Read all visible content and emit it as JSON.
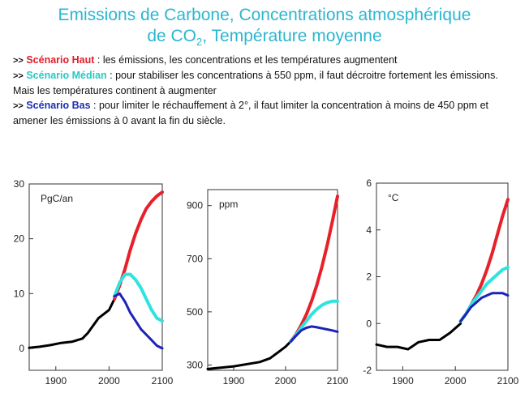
{
  "title": {
    "line1": "Emissions de Carbone, Concentrations atmosphérique",
    "line2_prefix": "de CO",
    "line2_sub": "2",
    "line2_suffix": ", Température moyenne"
  },
  "bullets": {
    "arrow": ">>",
    "haut_label": "Scénario Haut",
    "haut_text": " : les émissions, les concentrations et les températures augmentent",
    "median_label": "Scénario Médian",
    "median_text": " : pour stabiliser les concentrations à 550 ppm, il faut décroitre fortement les émissions. Mais les températures continent à augmenter",
    "bas_label": "Scénario Bas",
    "bas_text": " : pour limiter le réchauffement à 2°, il faut limiter la  concentration à moins de 450 ppm et amener les émissions à 0 avant la fin du siècle."
  },
  "colors": {
    "haut": "#e8202a",
    "median": "#2fe3df",
    "bas": "#1d22b8",
    "historical": "#000000",
    "title": "#2cb6cf"
  },
  "chart_data": [
    {
      "type": "line",
      "unit_label": "PgC/an",
      "xlim": [
        1850,
        2100
      ],
      "ylim": [
        -4,
        30
      ],
      "xticks": [
        1900,
        2000,
        2100
      ],
      "yticks": [
        0,
        10,
        20,
        30
      ],
      "series": [
        {
          "name": "",
          "key": "historical",
          "x": [
            1850,
            1870,
            1890,
            1910,
            1930,
            1950,
            1960,
            1980,
            2000,
            2010
          ],
          "values": [
            0.1,
            0.3,
            0.6,
            1.0,
            1.2,
            1.8,
            2.8,
            5.5,
            7.0,
            9.0
          ]
        },
        {
          "name": "Scénario Haut",
          "key": "haut",
          "x": [
            2010,
            2020,
            2030,
            2040,
            2050,
            2060,
            2070,
            2080,
            2090,
            2100
          ],
          "values": [
            9.0,
            11.5,
            14.5,
            18.0,
            21.0,
            23.5,
            25.5,
            26.8,
            27.8,
            28.5
          ]
        },
        {
          "name": "Scénario Médian",
          "key": "median",
          "x": [
            2010,
            2020,
            2030,
            2040,
            2050,
            2060,
            2070,
            2080,
            2090,
            2100
          ],
          "values": [
            9.5,
            12.0,
            13.5,
            13.5,
            12.5,
            11.0,
            9.0,
            7.0,
            5.5,
            5.0
          ]
        },
        {
          "name": "Scénario Bas",
          "key": "bas",
          "x": [
            2010,
            2020,
            2030,
            2040,
            2050,
            2060,
            2070,
            2080,
            2090,
            2100
          ],
          "values": [
            9.5,
            10.0,
            8.5,
            6.5,
            5.0,
            3.5,
            2.5,
            1.5,
            0.5,
            0.0
          ]
        }
      ]
    },
    {
      "type": "line",
      "unit_label": "ppm",
      "xlim": [
        1850,
        2100
      ],
      "ylim": [
        280,
        960
      ],
      "xticks": [
        1900,
        2000,
        2100
      ],
      "yticks": [
        300,
        500,
        700,
        900
      ],
      "series": [
        {
          "name": "",
          "key": "historical",
          "x": [
            1850,
            1900,
            1950,
            1970,
            1990,
            2000,
            2010
          ],
          "values": [
            285,
            295,
            311,
            325,
            354,
            369,
            389
          ]
        },
        {
          "name": "Scénario Haut",
          "key": "haut",
          "x": [
            2010,
            2020,
            2030,
            2040,
            2050,
            2060,
            2070,
            2080,
            2090,
            2100
          ],
          "values": [
            389,
            415,
            450,
            490,
            540,
            600,
            670,
            750,
            840,
            935
          ]
        },
        {
          "name": "Scénario Médian",
          "key": "median",
          "x": [
            2010,
            2020,
            2030,
            2040,
            2050,
            2060,
            2070,
            2080,
            2090,
            2100
          ],
          "values": [
            389,
            412,
            440,
            465,
            490,
            510,
            525,
            535,
            540,
            540
          ]
        },
        {
          "name": "Scénario Bas",
          "key": "bas",
          "x": [
            2010,
            2020,
            2030,
            2040,
            2050,
            2060,
            2070,
            2080,
            2090,
            2100
          ],
          "values": [
            389,
            410,
            430,
            440,
            445,
            442,
            438,
            434,
            430,
            425
          ]
        }
      ]
    },
    {
      "type": "line",
      "unit_label": "°C",
      "xlim": [
        1850,
        2100
      ],
      "ylim": [
        -2,
        6
      ],
      "xticks": [
        1900,
        2000,
        2100
      ],
      "yticks": [
        -2,
        0,
        2,
        4,
        6
      ],
      "series": [
        {
          "name": "",
          "key": "historical",
          "x": [
            1850,
            1870,
            1890,
            1910,
            1930,
            1950,
            1970,
            1990,
            2000,
            2010
          ],
          "values": [
            -0.9,
            -1.0,
            -1.0,
            -1.1,
            -0.8,
            -0.7,
            -0.7,
            -0.4,
            -0.2,
            0.0
          ]
        },
        {
          "name": "Scénario Haut",
          "key": "haut",
          "x": [
            2010,
            2020,
            2030,
            2040,
            2050,
            2060,
            2070,
            2080,
            2090,
            2100
          ],
          "values": [
            0.1,
            0.4,
            0.8,
            1.2,
            1.7,
            2.3,
            3.0,
            3.8,
            4.6,
            5.3
          ]
        },
        {
          "name": "Scénario Médian",
          "key": "median",
          "x": [
            2010,
            2020,
            2030,
            2040,
            2050,
            2060,
            2070,
            2080,
            2090,
            2100
          ],
          "values": [
            0.1,
            0.4,
            0.8,
            1.1,
            1.4,
            1.7,
            1.9,
            2.1,
            2.3,
            2.4
          ]
        },
        {
          "name": "Scénario Bas",
          "key": "bas",
          "x": [
            2010,
            2020,
            2030,
            2040,
            2050,
            2060,
            2070,
            2080,
            2090,
            2100
          ],
          "values": [
            0.1,
            0.4,
            0.7,
            0.9,
            1.1,
            1.2,
            1.3,
            1.3,
            1.3,
            1.2
          ]
        }
      ]
    }
  ]
}
